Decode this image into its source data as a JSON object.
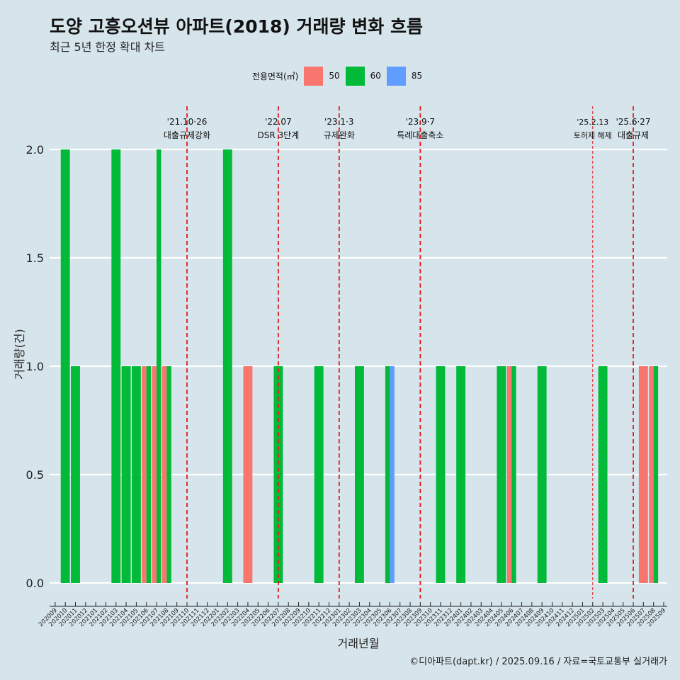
{
  "title": "도양 고흥오션뷰 아파트(2018) 거래량 변화 흐름",
  "subtitle": "최근 5년 한정 확대 차트",
  "legend": {
    "title": "전용면적(㎡)",
    "items": [
      {
        "label": "50",
        "color": "#f8766d"
      },
      {
        "label": "60",
        "color": "#00ba38"
      },
      {
        "label": "85",
        "color": "#619cff"
      }
    ]
  },
  "footer": "©디아파트(dapt.kr) / 2025.09.16 / 자료=국토교통부 실거래가",
  "chart_data": {
    "type": "bar",
    "stacked": "dodge",
    "xlabel": "거래년월",
    "ylabel": "거래량(건)",
    "ylim": [
      0,
      2
    ],
    "yticks": [
      "0.0",
      "0.5",
      "1.0",
      "1.5",
      "2.0"
    ],
    "grid": "horizontal",
    "legend_position": "top",
    "categories": [
      "202009",
      "202010",
      "202011",
      "202012",
      "202101",
      "202102",
      "202103",
      "202104",
      "202105",
      "202106",
      "202107",
      "202108",
      "202109",
      "202110",
      "202111",
      "202112",
      "202201",
      "202202",
      "202203",
      "202204",
      "202205",
      "202206",
      "202207",
      "202208",
      "202209",
      "202210",
      "202211",
      "202212",
      "202301",
      "202302",
      "202303",
      "202304",
      "202305",
      "202306",
      "202307",
      "202308",
      "202309",
      "202310",
      "202311",
      "202312",
      "202401",
      "202402",
      "202403",
      "202404",
      "202405",
      "202406",
      "202407",
      "202408",
      "202409",
      "202410",
      "202411",
      "202412",
      "202501",
      "202502",
      "202503",
      "202504",
      "202505",
      "202506",
      "202507",
      "202508",
      "202509"
    ],
    "series": [
      {
        "name": "50",
        "color": "#f8766d",
        "values": [
          0,
          0,
          0,
          0,
          0,
          0,
          0,
          0,
          0,
          1,
          1,
          1,
          0,
          0,
          0,
          0,
          0,
          0,
          0,
          1,
          0,
          0,
          0,
          0,
          0,
          0,
          0,
          0,
          0,
          0,
          0,
          0,
          0,
          0,
          0,
          0,
          0,
          0,
          0,
          0,
          0,
          0,
          0,
          0,
          0,
          1,
          0,
          0,
          0,
          0,
          0,
          0,
          0,
          0,
          0,
          0,
          0,
          0,
          1,
          1,
          0
        ]
      },
      {
        "name": "60",
        "color": "#00ba38",
        "values": [
          0,
          2,
          1,
          0,
          0,
          0,
          2,
          1,
          1,
          1,
          2,
          1,
          0,
          0,
          0,
          0,
          0,
          2,
          0,
          0,
          0,
          0,
          1,
          0,
          0,
          0,
          1,
          0,
          0,
          0,
          1,
          0,
          0,
          1,
          0,
          0,
          0,
          0,
          1,
          0,
          1,
          0,
          0,
          0,
          1,
          1,
          0,
          0,
          1,
          0,
          0,
          0,
          0,
          0,
          1,
          0,
          0,
          0,
          0,
          1,
          0
        ]
      },
      {
        "name": "85",
        "color": "#619cff",
        "values": [
          0,
          0,
          0,
          0,
          0,
          0,
          0,
          0,
          0,
          0,
          0,
          0,
          0,
          0,
          0,
          0,
          0,
          0,
          0,
          0,
          0,
          0,
          0,
          0,
          0,
          0,
          0,
          0,
          0,
          0,
          0,
          0,
          0,
          1,
          0,
          0,
          0,
          0,
          0,
          0,
          0,
          0,
          0,
          0,
          0,
          0,
          0,
          0,
          0,
          0,
          0,
          0,
          0,
          0,
          0,
          0,
          0,
          0,
          0,
          0,
          0
        ]
      }
    ],
    "annotations": [
      {
        "at": "202110",
        "date": "'21.10·26",
        "label": "대출규제강화",
        "style": "bold"
      },
      {
        "at": "202207",
        "date": "'22.07",
        "label": "DSR 3단계",
        "style": "bold"
      },
      {
        "at": "202301",
        "date": "'23.1·3",
        "label": "규제완화",
        "style": "bold"
      },
      {
        "at": "202309",
        "date": "'23.9·7",
        "label": "특례대출축소",
        "style": "bold"
      },
      {
        "at": "202502",
        "date": "'25.2.13",
        "label": "토허제 해제",
        "style": "thin"
      },
      {
        "at": "202506",
        "date": "'25.6·27",
        "label": "대출규제",
        "style": "bold"
      }
    ]
  }
}
